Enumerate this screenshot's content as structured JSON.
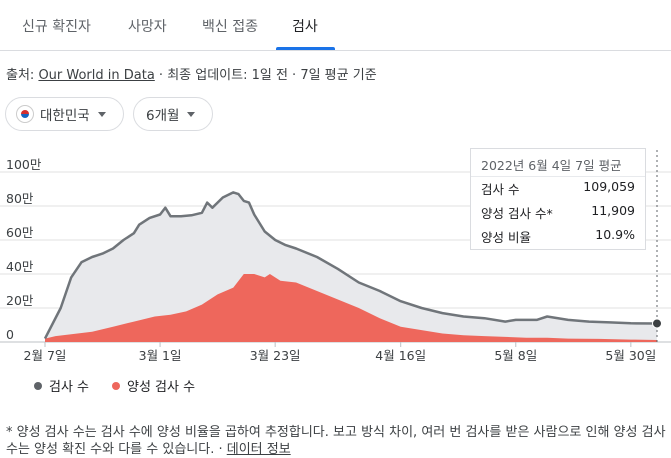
{
  "tabs": [
    "신규 확진자",
    "사망자",
    "백신 접종",
    "검사"
  ],
  "active_tab": 3,
  "source": {
    "prefix": "출처: ",
    "link": "Our World in Data",
    "suffix": " · 최종 업데이트: 1일 전 · 7일 평균 기준"
  },
  "filters": {
    "country": "대한민국",
    "period": "6개월"
  },
  "tooltip": {
    "date": "2022년 6월 4일 7일 평균",
    "rows": [
      {
        "label": "검사 수",
        "value": "109,059"
      },
      {
        "label": "양성 검사 수*",
        "value": "11,909"
      },
      {
        "label": "양성 비율",
        "value": "10.9%"
      }
    ]
  },
  "legend": [
    "검사 수",
    "양성 검사 수"
  ],
  "footnote": {
    "text": "* 양성 검사 수는 검사 수에 양성 비율을 곱하여 추정합니다. 보고 방식 차이, 여러 번 검사를 받은 사람으로 인해 양성 검사 수는 양성 확진 수와 다를 수 있습니다. · ",
    "link": "데이터 정보"
  },
  "colors": {
    "tests": "#70757a",
    "tests_fill": "#e8e9ec",
    "positive": "#ee675c",
    "accent": "#1a73e8",
    "grid": "#e0e0e0"
  },
  "chart_data": {
    "type": "area",
    "ytick_labels": [
      "0",
      "20만",
      "40만",
      "60만",
      "80만",
      "100만"
    ],
    "ylim": [
      0,
      1000000
    ],
    "ytick_values": [
      0,
      200000,
      400000,
      600000,
      800000,
      1000000
    ],
    "xtick_labels": [
      "2월 7일",
      "3월 1일",
      "3월 23일",
      "4월 16일",
      "5월 8일",
      "5월 30일"
    ],
    "xtick_days": [
      0,
      22,
      44,
      68,
      90,
      112
    ],
    "x_days_range": [
      0,
      117
    ],
    "series": [
      {
        "name": "검사 수",
        "points": [
          [
            0,
            20000
          ],
          [
            3,
            200000
          ],
          [
            5,
            380000
          ],
          [
            7,
            470000
          ],
          [
            9,
            500000
          ],
          [
            11,
            520000
          ],
          [
            13,
            550000
          ],
          [
            15,
            600000
          ],
          [
            17,
            640000
          ],
          [
            18,
            690000
          ],
          [
            20,
            730000
          ],
          [
            22,
            750000
          ],
          [
            23,
            790000
          ],
          [
            24,
            740000
          ],
          [
            26,
            740000
          ],
          [
            28,
            745000
          ],
          [
            30,
            760000
          ],
          [
            31,
            820000
          ],
          [
            32,
            790000
          ],
          [
            34,
            850000
          ],
          [
            36,
            880000
          ],
          [
            37,
            870000
          ],
          [
            38,
            830000
          ],
          [
            39,
            820000
          ],
          [
            40,
            750000
          ],
          [
            42,
            650000
          ],
          [
            44,
            600000
          ],
          [
            46,
            570000
          ],
          [
            48,
            550000
          ],
          [
            52,
            500000
          ],
          [
            56,
            430000
          ],
          [
            60,
            350000
          ],
          [
            64,
            300000
          ],
          [
            68,
            240000
          ],
          [
            72,
            200000
          ],
          [
            76,
            170000
          ],
          [
            80,
            150000
          ],
          [
            84,
            140000
          ],
          [
            88,
            120000
          ],
          [
            90,
            130000
          ],
          [
            94,
            130000
          ],
          [
            96,
            150000
          ],
          [
            100,
            130000
          ],
          [
            104,
            120000
          ],
          [
            108,
            115000
          ],
          [
            112,
            110000
          ],
          [
            117,
            109059
          ]
        ]
      },
      {
        "name": "양성 검사 수",
        "points": [
          [
            0,
            20000
          ],
          [
            2,
            35000
          ],
          [
            5,
            45000
          ],
          [
            9,
            60000
          ],
          [
            13,
            90000
          ],
          [
            17,
            120000
          ],
          [
            21,
            150000
          ],
          [
            24,
            160000
          ],
          [
            27,
            180000
          ],
          [
            30,
            220000
          ],
          [
            33,
            280000
          ],
          [
            36,
            320000
          ],
          [
            38,
            400000
          ],
          [
            40,
            400000
          ],
          [
            42,
            380000
          ],
          [
            43,
            400000
          ],
          [
            45,
            360000
          ],
          [
            48,
            350000
          ],
          [
            52,
            300000
          ],
          [
            56,
            250000
          ],
          [
            60,
            200000
          ],
          [
            64,
            140000
          ],
          [
            68,
            90000
          ],
          [
            72,
            70000
          ],
          [
            76,
            50000
          ],
          [
            80,
            40000
          ],
          [
            84,
            35000
          ],
          [
            88,
            30000
          ],
          [
            92,
            25000
          ],
          [
            96,
            25000
          ],
          [
            100,
            20000
          ],
          [
            106,
            18000
          ],
          [
            112,
            14000
          ],
          [
            117,
            11909
          ]
        ]
      }
    ],
    "grid": true,
    "legend_position": "bottom-left"
  }
}
